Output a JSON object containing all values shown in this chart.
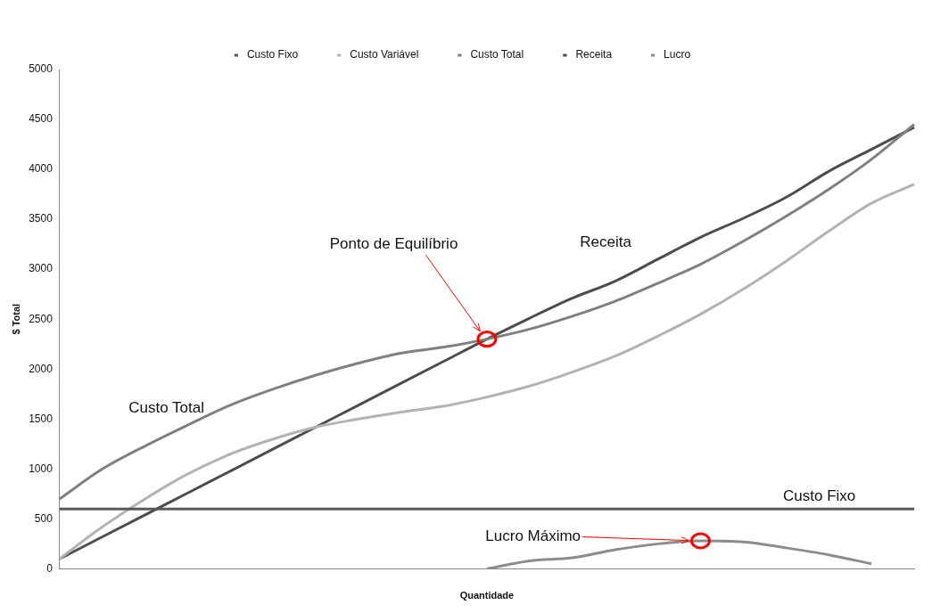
{
  "chart_data": {
    "type": "line",
    "xlabel": "Quantidade",
    "ylabel": "$ Total",
    "categories": [
      null,
      null,
      null,
      null,
      null,
      null,
      null,
      null,
      null,
      null,
      null,
      null,
      null,
      null,
      null,
      null,
      null,
      null,
      null,
      null,
      null
    ],
    "series": [
      {
        "name": "Custo Fixo",
        "color": "#595959",
        "values": [
          600,
          600,
          600,
          600,
          600,
          600,
          600,
          600,
          600,
          600,
          600,
          600,
          600,
          600,
          600,
          600,
          600,
          600,
          600,
          600,
          600
        ]
      },
      {
        "name": "Custo Variável",
        "color": "#b3b3b3",
        "values": [
          100,
          420,
          700,
          950,
          1150,
          1300,
          1420,
          1500,
          1570,
          1630,
          1720,
          1830,
          1970,
          2130,
          2330,
          2550,
          2800,
          3080,
          3380,
          3660,
          3850
        ]
      },
      {
        "name": "Custo Total",
        "color": "#808080",
        "values": [
          700,
          1000,
          1230,
          1440,
          1640,
          1800,
          1940,
          2060,
          2160,
          2220,
          2300,
          2400,
          2530,
          2680,
          2860,
          3050,
          3280,
          3530,
          3800,
          4100,
          4450
        ]
      },
      {
        "name": "Receita",
        "color": "#4d4d4d",
        "values": [
          100,
          320,
          540,
          760,
          980,
          1200,
          1420,
          1640,
          1860,
          2080,
          2300,
          2510,
          2710,
          2880,
          3100,
          3320,
          3510,
          3720,
          3980,
          4200,
          4420
        ]
      },
      {
        "name": "Lucro",
        "color": "#8c8c8c",
        "values": [
          null,
          null,
          null,
          null,
          null,
          null,
          null,
          null,
          null,
          null,
          0,
          80,
          110,
          190,
          250,
          280,
          270,
          210,
          140,
          50,
          null
        ]
      }
    ],
    "ylim": [
      0,
      5000
    ],
    "yticks": [
      0,
      500,
      1000,
      1500,
      2000,
      2500,
      3000,
      3500,
      4000,
      4500,
      5000
    ],
    "legend": "top",
    "annotations": [
      "Ponto de Equilíbrio",
      "Receita",
      "Custo Total",
      "Custo Fixo",
      "Lucro Máximo"
    ]
  }
}
